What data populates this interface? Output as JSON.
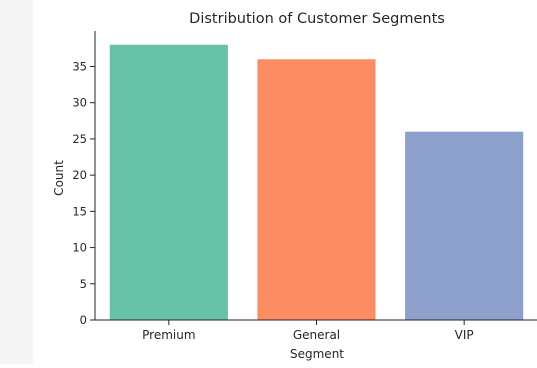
{
  "chart_data": {
    "type": "bar",
    "title": "Distribution of Customer Segments",
    "xlabel": "Segment",
    "ylabel": "Count",
    "categories": [
      "Premium",
      "General",
      "VIP"
    ],
    "values": [
      38,
      36,
      26
    ],
    "colors": [
      "#66c2a5",
      "#fc8d62",
      "#8da0cb"
    ],
    "ylim": [
      0,
      39.9
    ],
    "yticks": [
      0,
      5,
      10,
      15,
      20,
      25,
      30,
      35
    ],
    "grid": false
  }
}
